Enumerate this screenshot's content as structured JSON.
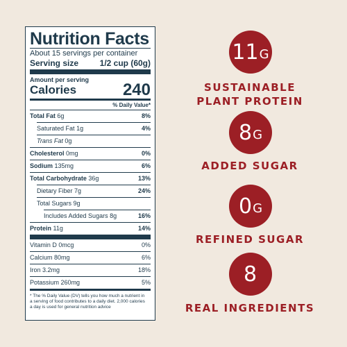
{
  "nutrition": {
    "title": "Nutrition Facts",
    "servings": "About 15 servings per container",
    "serving_size_label": "Serving size",
    "serving_size_value": "1/2 cup (60g)",
    "amount_per_serving": "Amount per serving",
    "calories_label": "Calories",
    "calories_value": "240",
    "dv_header": "% Daily Value*",
    "nutrients": [
      {
        "name": "Total Fat",
        "amount": "6g",
        "dv": "8%"
      },
      {
        "name": "Saturated Fat",
        "amount": "1g",
        "dv": "4%"
      },
      {
        "name": "Trans Fat",
        "amount": "0g",
        "dv": ""
      },
      {
        "name": "Cholesterol",
        "amount": "0mg",
        "dv": "0%"
      },
      {
        "name": "Sodium",
        "amount": "135mg",
        "dv": "6%"
      },
      {
        "name": "Total Carbohydrate",
        "amount": "36g",
        "dv": "13%"
      },
      {
        "name": "Dietary Fiber",
        "amount": "7g",
        "dv": "24%"
      },
      {
        "name": "Total Sugars",
        "amount": "9g",
        "dv": ""
      },
      {
        "name": "Added Sugars",
        "amount": "8g",
        "dv": "16%",
        "prefix": "Includes "
      },
      {
        "name": "Protein",
        "amount": "11g",
        "dv": "14%"
      }
    ],
    "minerals": [
      {
        "name": "Vitamin D",
        "amount": "0mcg",
        "dv": "0%"
      },
      {
        "name": "Calcium",
        "amount": "80mg",
        "dv": "6%"
      },
      {
        "name": "Iron",
        "amount": "3.2mg",
        "dv": "18%"
      },
      {
        "name": "Potassium",
        "amount": "260mg",
        "dv": "5%"
      }
    ],
    "footnote": "* The % Daily Value (DV) tells you how much a nutrient in a serving of food contributes to a daily diet. 2,000 calories a day is used for general nutrition advice"
  },
  "claims": [
    {
      "number": "11",
      "unit": "G",
      "text_line1": "SUSTAINABLE",
      "text_line2": "PLANT PROTEIN"
    },
    {
      "number": "8",
      "unit": "G",
      "text_line1": "ADDED SUGAR",
      "text_line2": ""
    },
    {
      "number": "0",
      "unit": "G",
      "text_line1": "REFINED SUGAR",
      "text_line2": ""
    },
    {
      "number": "8",
      "unit": "",
      "text_line1": "REAL INGREDIENTS",
      "text_line2": ""
    }
  ],
  "colors": {
    "accent": "#9c1f25",
    "label_ink": "#1f3a4b",
    "background": "#f1e9df"
  }
}
